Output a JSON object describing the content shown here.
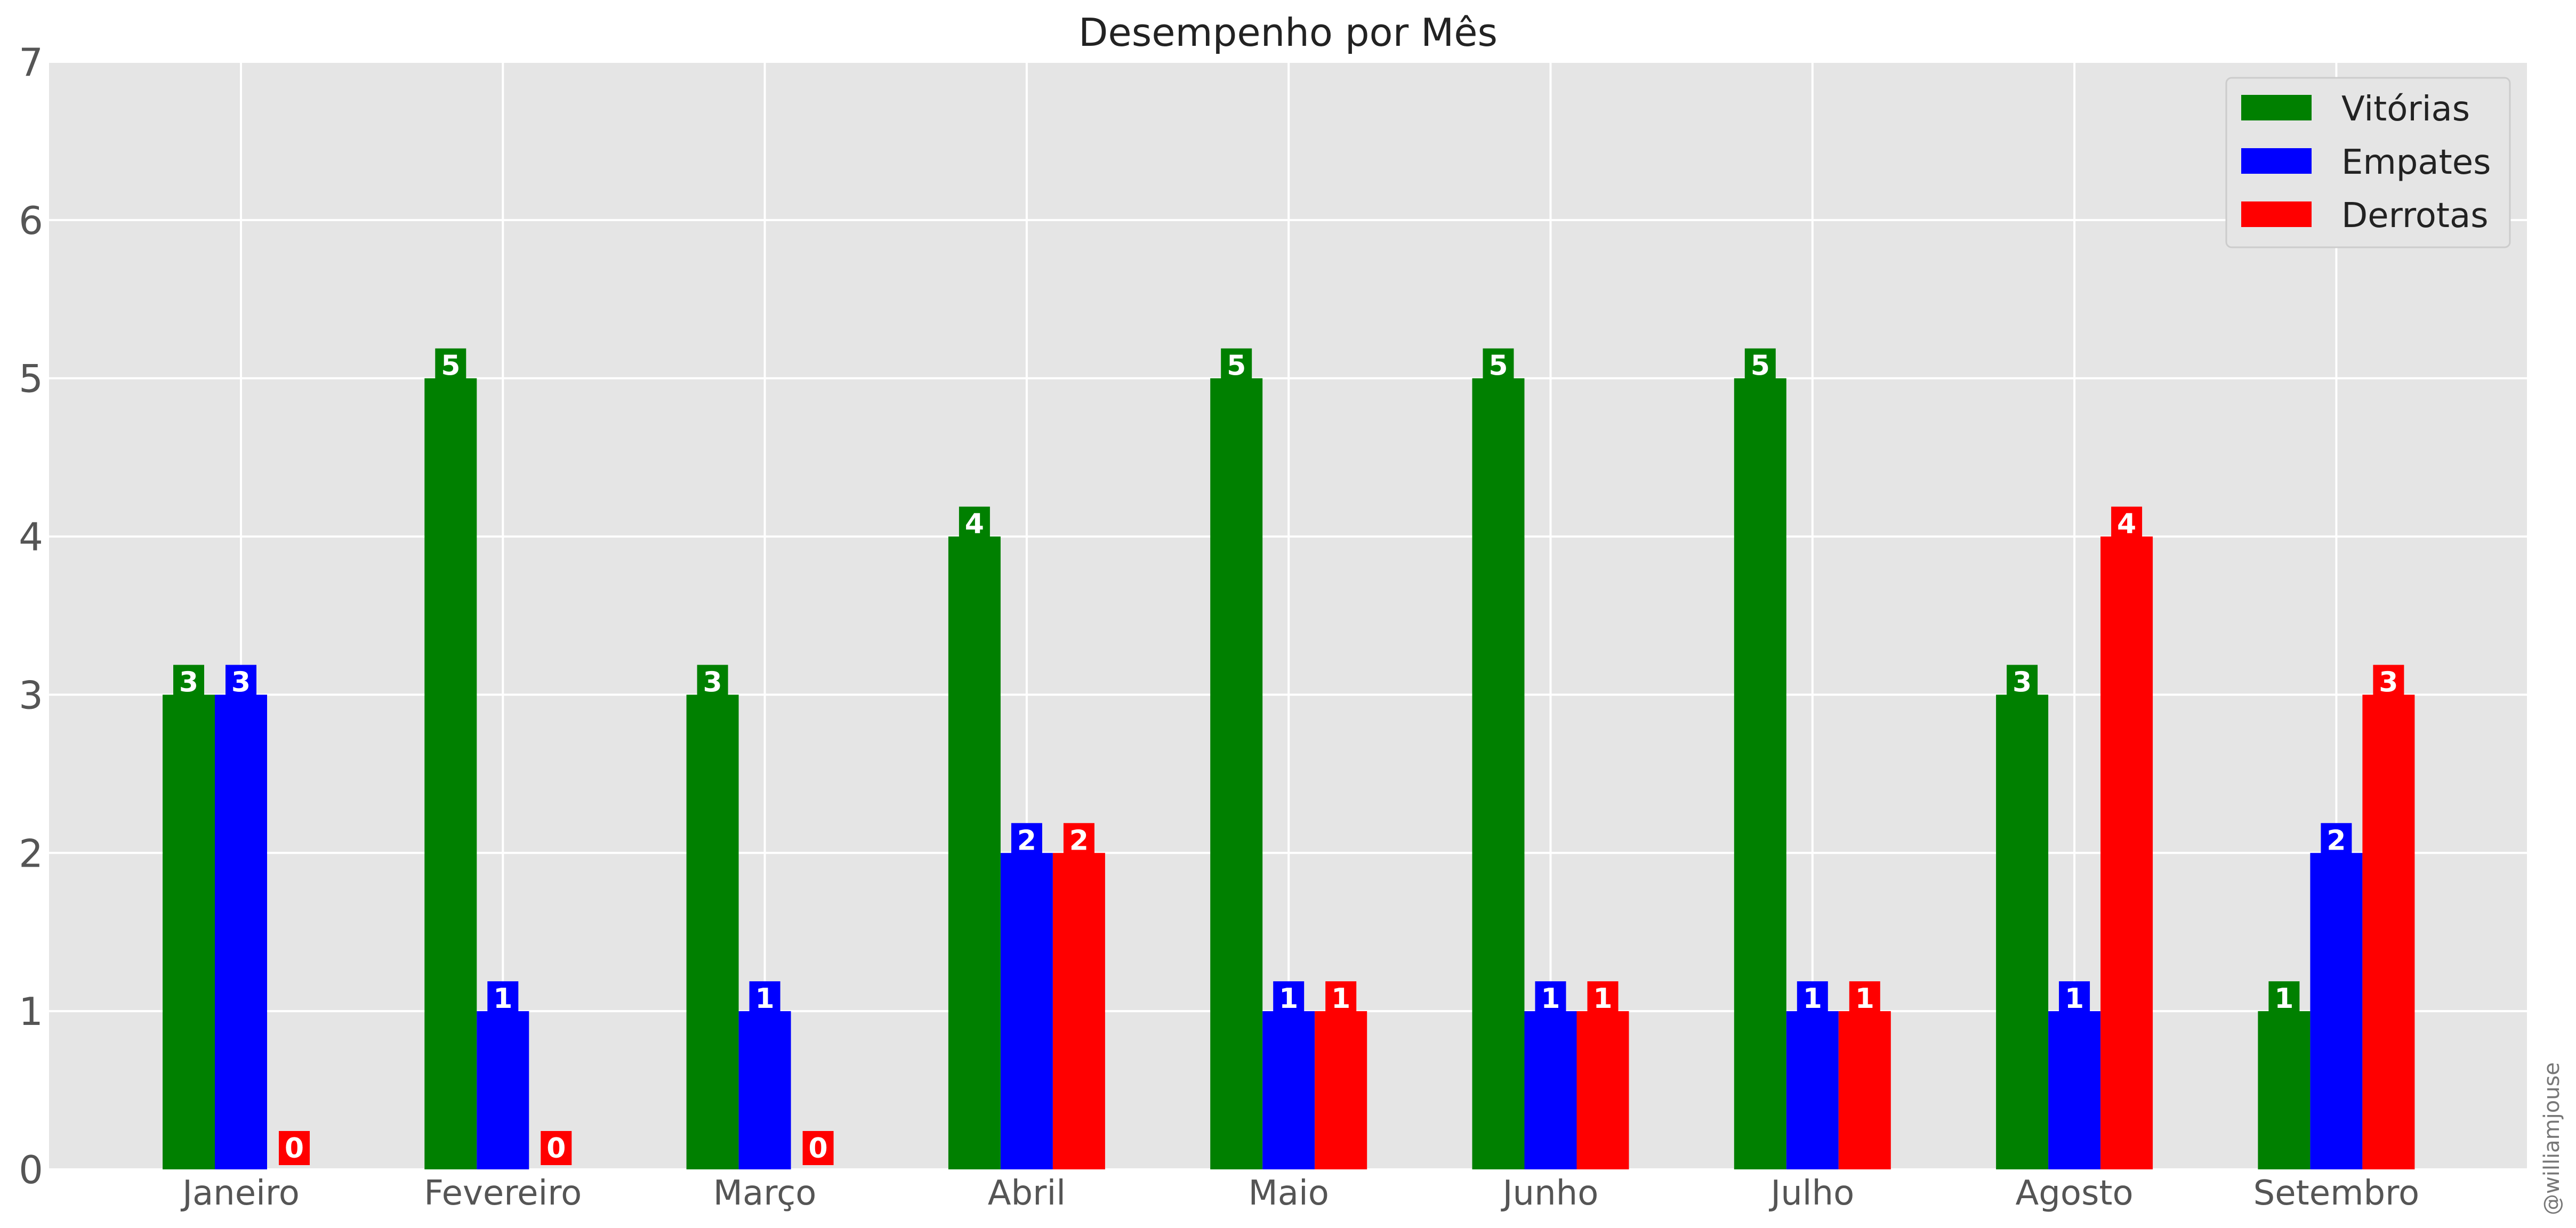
{
  "chart_data": {
    "type": "bar",
    "title": "Desempenho por Mês",
    "categories": [
      "Janeiro",
      "Fevereiro",
      "Março",
      "Abril",
      "Maio",
      "Junho",
      "Julho",
      "Agosto",
      "Setembro"
    ],
    "series": [
      {
        "name": "Vitórias",
        "color": "#008000",
        "values": [
          3,
          5,
          3,
          4,
          5,
          5,
          5,
          3,
          1
        ]
      },
      {
        "name": "Empates",
        "color": "#0000ff",
        "values": [
          3,
          1,
          1,
          2,
          1,
          1,
          1,
          1,
          2
        ]
      },
      {
        "name": "Derrotas",
        "color": "#ff0000",
        "values": [
          0,
          0,
          0,
          2,
          1,
          1,
          1,
          4,
          3
        ]
      }
    ],
    "yticks": [
      "0",
      "1",
      "2",
      "3",
      "4",
      "5",
      "6",
      "7"
    ],
    "ylim": [
      0,
      7
    ],
    "xlabel": "",
    "ylabel": "",
    "grid": true,
    "legend_position": "top-right",
    "background_color": "#e5e5e5",
    "grid_color": "#ffffff",
    "watermark": "@williamjouse"
  }
}
